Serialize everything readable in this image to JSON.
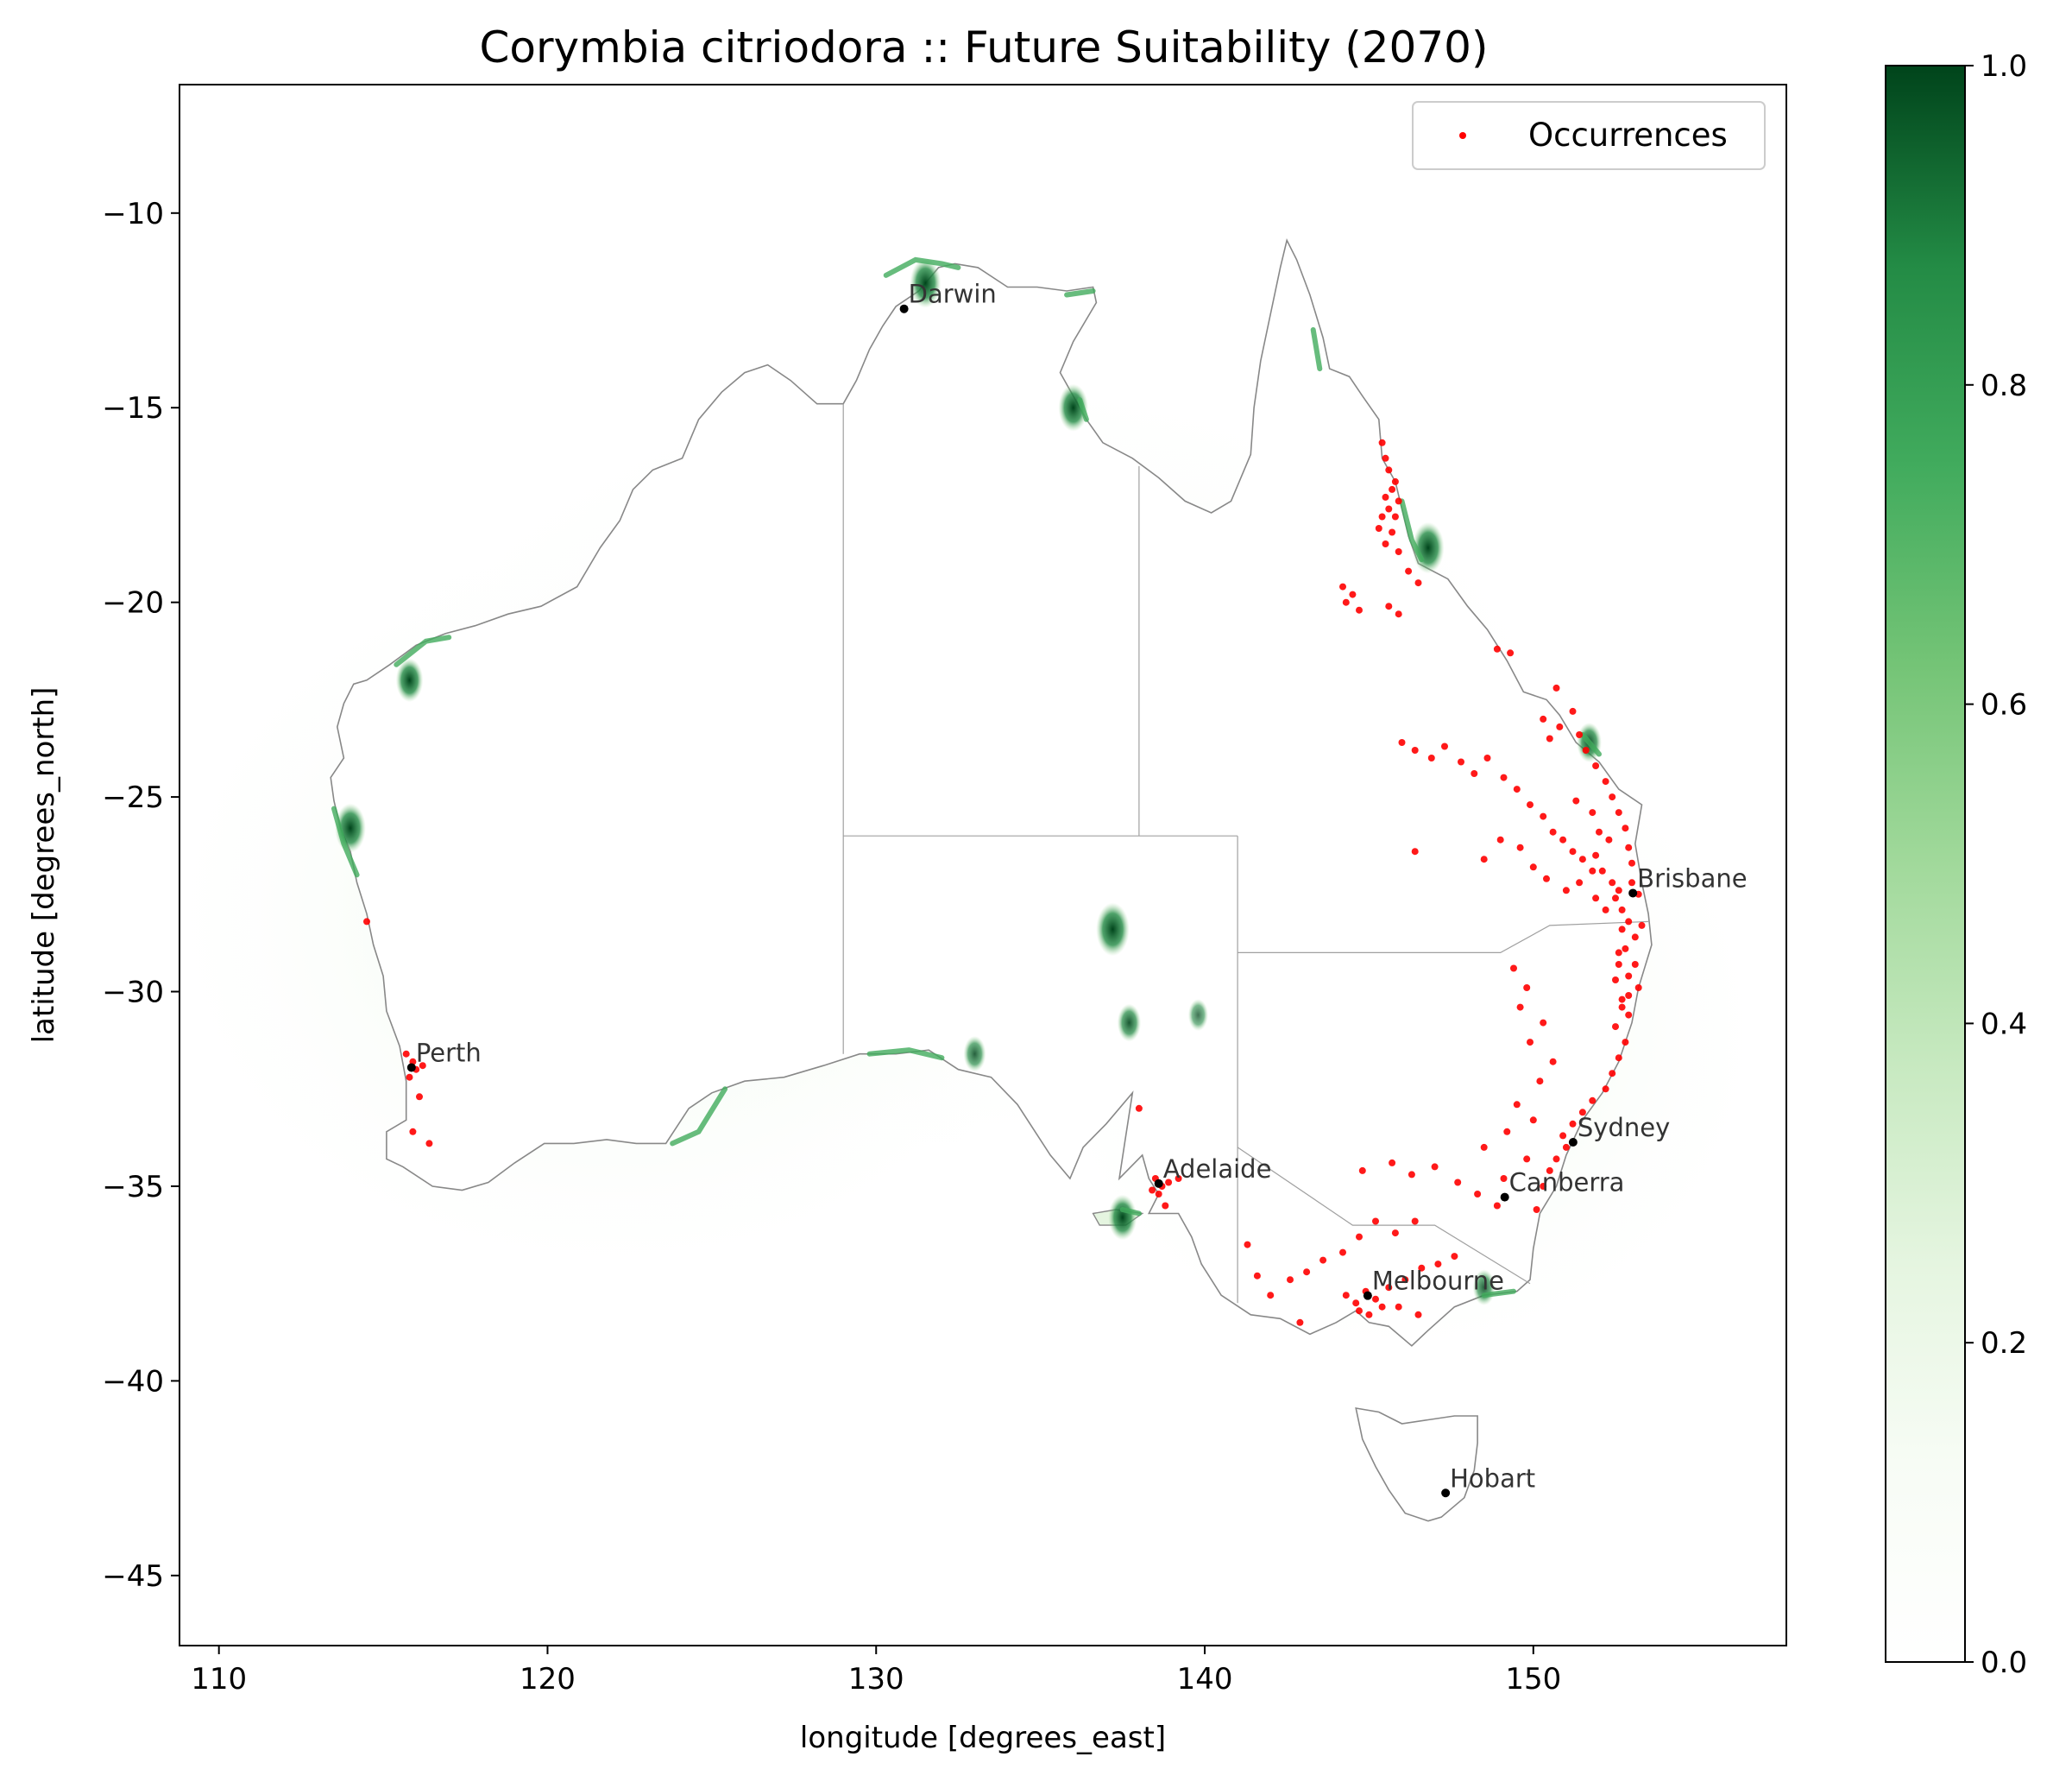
{
  "chart_data": {
    "type": "scatter",
    "title": "Corymbia citriodora :: Future Suitability (2070)",
    "xlabel": "longitude [degrees_east]",
    "ylabel": "latitude [degrees_north]",
    "xlim": [
      108.8,
      157.7
    ],
    "ylim": [
      -46.8,
      -6.7
    ],
    "xticks": [
      110,
      120,
      130,
      140,
      150
    ],
    "yticks": [
      -10,
      -15,
      -20,
      -25,
      -30,
      -35,
      -40,
      -45
    ],
    "xtick_labels": [
      "110",
      "120",
      "130",
      "140",
      "150"
    ],
    "ytick_labels": [
      "−10",
      "−15",
      "−20",
      "−25",
      "−30",
      "−35",
      "−40",
      "−45"
    ],
    "grid": false,
    "legend": {
      "position": "top-right",
      "entries": [
        {
          "label": "Occurrences",
          "color": "#ff0000"
        }
      ]
    },
    "colorbar": {
      "colormap": "Greens",
      "range": [
        0.0,
        1.0
      ],
      "ticks": [
        0.0,
        0.2,
        0.4,
        0.6,
        0.8,
        1.0
      ],
      "tick_labels": [
        "0.0",
        "0.2",
        "0.4",
        "0.6",
        "0.8",
        "1.0"
      ],
      "colors": [
        "#f7fcf5",
        "#e5f5e0",
        "#c7e9c0",
        "#a1d99b",
        "#74c476",
        "#41ab5d",
        "#238b45",
        "#006d2c",
        "#00441b"
      ]
    },
    "cities": [
      {
        "name": "Darwin",
        "lon": 130.85,
        "lat": -12.46
      },
      {
        "name": "Brisbane",
        "lon": 153.03,
        "lat": -27.47
      },
      {
        "name": "Perth",
        "lon": 115.86,
        "lat": -31.95
      },
      {
        "name": "Sydney",
        "lon": 151.21,
        "lat": -33.87
      },
      {
        "name": "Adelaide",
        "lon": 138.6,
        "lat": -34.93
      },
      {
        "name": "Canberra",
        "lon": 149.13,
        "lat": -35.28
      },
      {
        "name": "Melbourne",
        "lon": 144.96,
        "lat": -37.81
      },
      {
        "name": "Hobart",
        "lon": 147.33,
        "lat": -42.88
      }
    ],
    "suitability_hotspots": [
      {
        "lon": 137.2,
        "lat": -28.4,
        "value": 0.95
      },
      {
        "lon": 137.7,
        "lat": -30.8,
        "value": 0.55
      },
      {
        "lon": 139.8,
        "lat": -30.6,
        "value": 0.4
      },
      {
        "lon": 146.8,
        "lat": -18.6,
        "value": 0.9
      },
      {
        "lon": 136.0,
        "lat": -15.0,
        "value": 0.8
      },
      {
        "lon": 114.0,
        "lat": -25.8,
        "value": 0.85
      },
      {
        "lon": 115.8,
        "lat": -22.0,
        "value": 0.7
      },
      {
        "lon": 131.5,
        "lat": -11.8,
        "value": 0.85
      },
      {
        "lon": 151.7,
        "lat": -23.6,
        "value": 0.6
      },
      {
        "lon": 137.5,
        "lat": -35.8,
        "value": 0.75
      },
      {
        "lon": 148.5,
        "lat": -37.6,
        "value": 0.5
      },
      {
        "lon": 133.0,
        "lat": -31.6,
        "value": 0.5
      }
    ],
    "occurrences": [
      [
        145.4,
        -15.9
      ],
      [
        145.5,
        -16.3
      ],
      [
        145.6,
        -16.6
      ],
      [
        145.8,
        -16.9
      ],
      [
        145.7,
        -17.1
      ],
      [
        145.5,
        -17.3
      ],
      [
        145.9,
        -17.4
      ],
      [
        145.6,
        -17.6
      ],
      [
        145.4,
        -17.8
      ],
      [
        145.8,
        -17.8
      ],
      [
        145.3,
        -18.1
      ],
      [
        145.7,
        -18.2
      ],
      [
        145.5,
        -18.5
      ],
      [
        145.9,
        -18.7
      ],
      [
        146.2,
        -19.2
      ],
      [
        146.5,
        -19.5
      ],
      [
        144.2,
        -19.6
      ],
      [
        144.5,
        -19.8
      ],
      [
        144.3,
        -20.0
      ],
      [
        144.7,
        -20.2
      ],
      [
        145.6,
        -20.1
      ],
      [
        145.9,
        -20.3
      ],
      [
        148.9,
        -21.2
      ],
      [
        149.3,
        -21.3
      ],
      [
        150.7,
        -22.2
      ],
      [
        151.2,
        -22.8
      ],
      [
        150.3,
        -23.0
      ],
      [
        150.8,
        -23.2
      ],
      [
        150.5,
        -23.5
      ],
      [
        151.4,
        -23.4
      ],
      [
        151.6,
        -23.8
      ],
      [
        151.9,
        -24.2
      ],
      [
        152.2,
        -24.6
      ],
      [
        152.4,
        -25.0
      ],
      [
        152.6,
        -25.4
      ],
      [
        152.8,
        -25.8
      ],
      [
        152.9,
        -26.3
      ],
      [
        153.0,
        -26.7
      ],
      [
        146.0,
        -23.6
      ],
      [
        146.4,
        -23.8
      ],
      [
        146.9,
        -24.0
      ],
      [
        147.3,
        -23.7
      ],
      [
        147.8,
        -24.1
      ],
      [
        148.2,
        -24.4
      ],
      [
        148.6,
        -24.0
      ],
      [
        149.1,
        -24.5
      ],
      [
        149.5,
        -24.8
      ],
      [
        149.9,
        -25.2
      ],
      [
        150.3,
        -25.5
      ],
      [
        150.6,
        -25.9
      ],
      [
        150.9,
        -26.1
      ],
      [
        151.2,
        -26.4
      ],
      [
        151.5,
        -26.6
      ],
      [
        151.8,
        -26.9
      ],
      [
        146.4,
        -26.4
      ],
      [
        148.5,
        -26.6
      ],
      [
        149.0,
        -26.1
      ],
      [
        149.6,
        -26.3
      ],
      [
        150.0,
        -26.8
      ],
      [
        150.4,
        -27.1
      ],
      [
        151.0,
        -27.4
      ],
      [
        151.4,
        -27.2
      ],
      [
        151.9,
        -27.6
      ],
      [
        152.2,
        -27.9
      ],
      [
        152.5,
        -27.6
      ],
      [
        152.7,
        -27.9
      ],
      [
        152.9,
        -28.2
      ],
      [
        153.1,
        -28.6
      ],
      [
        152.8,
        -28.9
      ],
      [
        152.6,
        -29.3
      ],
      [
        152.9,
        -29.6
      ],
      [
        153.2,
        -29.9
      ],
      [
        152.7,
        -30.2
      ],
      [
        152.9,
        -30.6
      ],
      [
        152.5,
        -30.9
      ],
      [
        152.8,
        -31.3
      ],
      [
        152.6,
        -31.7
      ],
      [
        152.4,
        -32.1
      ],
      [
        152.2,
        -32.5
      ],
      [
        151.8,
        -32.8
      ],
      [
        151.5,
        -33.1
      ],
      [
        151.2,
        -33.4
      ],
      [
        150.9,
        -33.7
      ],
      [
        151.0,
        -34.0
      ],
      [
        150.7,
        -34.3
      ],
      [
        150.5,
        -34.6
      ],
      [
        150.3,
        -35.0
      ],
      [
        150.1,
        -35.6
      ],
      [
        151.3,
        -25.1
      ],
      [
        151.8,
        -25.4
      ],
      [
        152.0,
        -25.9
      ],
      [
        152.3,
        -26.1
      ],
      [
        151.9,
        -26.5
      ],
      [
        152.1,
        -26.9
      ],
      [
        152.4,
        -27.2
      ],
      [
        152.6,
        -27.4
      ],
      [
        153.0,
        -27.2
      ],
      [
        153.2,
        -27.5
      ],
      [
        152.7,
        -28.4
      ],
      [
        153.3,
        -28.3
      ],
      [
        152.6,
        -29.0
      ],
      [
        153.1,
        -29.3
      ],
      [
        152.5,
        -29.7
      ],
      [
        152.9,
        -30.1
      ],
      [
        152.7,
        -30.4
      ],
      [
        149.4,
        -29.4
      ],
      [
        149.8,
        -29.9
      ],
      [
        149.6,
        -30.4
      ],
      [
        150.3,
        -30.8
      ],
      [
        149.9,
        -31.3
      ],
      [
        150.6,
        -31.8
      ],
      [
        150.2,
        -32.3
      ],
      [
        149.5,
        -32.9
      ],
      [
        150.0,
        -33.3
      ],
      [
        149.2,
        -33.6
      ],
      [
        148.5,
        -34.0
      ],
      [
        149.8,
        -34.3
      ],
      [
        149.1,
        -34.8
      ],
      [
        144.8,
        -34.6
      ],
      [
        145.7,
        -34.4
      ],
      [
        146.3,
        -34.7
      ],
      [
        147.0,
        -34.5
      ],
      [
        147.7,
        -34.9
      ],
      [
        148.3,
        -35.2
      ],
      [
        148.9,
        -35.5
      ],
      [
        146.4,
        -35.9
      ],
      [
        145.8,
        -36.2
      ],
      [
        145.2,
        -35.9
      ],
      [
        144.7,
        -36.3
      ],
      [
        144.2,
        -36.7
      ],
      [
        143.6,
        -36.9
      ],
      [
        143.1,
        -37.2
      ],
      [
        142.6,
        -37.4
      ],
      [
        142.0,
        -37.8
      ],
      [
        141.6,
        -37.3
      ],
      [
        141.3,
        -36.5
      ],
      [
        142.9,
        -38.5
      ],
      [
        144.3,
        -37.8
      ],
      [
        144.6,
        -38.0
      ],
      [
        144.9,
        -37.7
      ],
      [
        145.2,
        -37.9
      ],
      [
        145.4,
        -38.1
      ],
      [
        145.0,
        -38.3
      ],
      [
        144.7,
        -38.2
      ],
      [
        145.6,
        -37.6
      ],
      [
        146.1,
        -37.4
      ],
      [
        146.6,
        -37.1
      ],
      [
        147.1,
        -37.0
      ],
      [
        147.6,
        -36.8
      ],
      [
        146.5,
        -38.3
      ],
      [
        145.9,
        -38.1
      ],
      [
        138.5,
        -34.8
      ],
      [
        138.7,
        -35.0
      ],
      [
        138.6,
        -35.2
      ],
      [
        138.9,
        -34.9
      ],
      [
        138.4,
        -35.1
      ],
      [
        139.2,
        -34.8
      ],
      [
        138.8,
        -35.5
      ],
      [
        138.0,
        -33.0
      ],
      [
        115.7,
        -31.6
      ],
      [
        115.9,
        -31.8
      ],
      [
        116.0,
        -32.0
      ],
      [
        115.8,
        -32.2
      ],
      [
        116.2,
        -31.9
      ],
      [
        116.1,
        -32.7
      ],
      [
        115.9,
        -33.6
      ],
      [
        116.4,
        -33.9
      ],
      [
        114.5,
        -28.2
      ]
    ]
  },
  "legend": {
    "label": "Occurrences"
  },
  "colors": {
    "occurrence": "#ff0000",
    "city_marker": "#000000",
    "coastline": "#888888",
    "state_border": "#a0a0a0"
  }
}
